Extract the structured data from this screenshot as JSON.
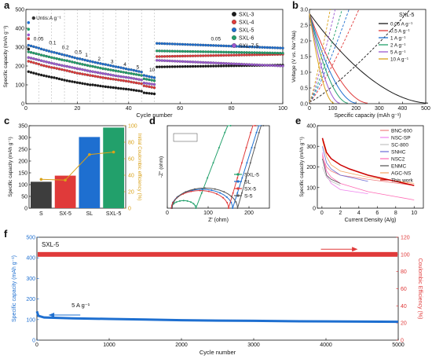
{
  "colors": {
    "blue_axis": "#1e6fd0",
    "red_axis": "#e03a3a",
    "orange_ice": "#d9a21a",
    "rate_lines": [
      "#1a1a1a",
      "#e03a3a",
      "#1e6fd0",
      "#22a06b",
      "#9b59d0",
      "#d9a21a"
    ]
  },
  "chart_data": [
    {
      "panel": "a",
      "type": "scatter",
      "ylabel": "Specific capacity (mAh g⁻¹)",
      "xlabel": "Cycle number",
      "xlim": [
        0,
        100
      ],
      "ylim": [
        0,
        500
      ],
      "xticks": [
        0,
        20,
        40,
        60,
        80,
        100
      ],
      "yticks": [
        0,
        100,
        200,
        300,
        400,
        500
      ],
      "unit_note": "Untis:A g⁻¹",
      "rate_labels": [
        {
          "text": "0.05",
          "x": 3,
          "y": 335
        },
        {
          "text": "0.1",
          "x": 9,
          "y": 315
        },
        {
          "text": "0.2",
          "x": 14,
          "y": 290
        },
        {
          "text": "0.5",
          "x": 19,
          "y": 265
        },
        {
          "text": "1",
          "x": 23,
          "y": 250
        },
        {
          "text": "2",
          "x": 28,
          "y": 230
        },
        {
          "text": "3",
          "x": 33,
          "y": 215
        },
        {
          "text": "4",
          "x": 38,
          "y": 200
        },
        {
          "text": "5",
          "x": 43,
          "y": 185
        },
        {
          "text": "10",
          "x": 48,
          "y": 170
        },
        {
          "text": "0.05",
          "x": 72,
          "y": 335
        }
      ],
      "series": [
        {
          "name": "SXL-3",
          "color": "#1a1a1a",
          "stages": [
            [
              170,
              155
            ],
            [
              152,
              140
            ],
            [
              138,
              125
            ],
            [
              122,
              112
            ],
            [
              110,
              100
            ],
            [
              100,
              92
            ],
            [
              90,
              84
            ],
            [
              82,
              76
            ],
            [
              74,
              66
            ],
            [
              58,
              52
            ],
            [
              195,
              205
            ]
          ]
        },
        {
          "name": "SXL-4",
          "color": "#e03a3a",
          "stages": [
            [
              225,
              210
            ],
            [
              205,
              192
            ],
            [
              190,
              178
            ],
            [
              175,
              162
            ],
            [
              160,
              150
            ],
            [
              148,
              138
            ],
            [
              136,
              128
            ],
            [
              126,
              118
            ],
            [
              115,
              106
            ],
            [
              95,
              85
            ],
            [
              250,
              262
            ]
          ]
        },
        {
          "name": "SXL-5",
          "color": "#1e6fd0",
          "stages": [
            [
              310,
              295
            ],
            [
              290,
              275
            ],
            [
              272,
              258
            ],
            [
              255,
              240
            ],
            [
              238,
              225
            ],
            [
              222,
              210
            ],
            [
              208,
              196
            ],
            [
              194,
              182
            ],
            [
              180,
              168
            ],
            [
              150,
              138
            ],
            [
              320,
              295
            ]
          ]
        },
        {
          "name": "SXL-6",
          "color": "#22a06b",
          "stages": [
            [
              275,
              262
            ],
            [
              258,
              245
            ],
            [
              242,
              230
            ],
            [
              228,
              215
            ],
            [
              212,
              200
            ],
            [
              198,
              186
            ],
            [
              184,
              174
            ],
            [
              172,
              162
            ],
            [
              160,
              150
            ],
            [
              132,
              122
            ],
            [
              280,
              268
            ]
          ]
        },
        {
          "name": "SXL-7.5",
          "color": "#9b59d0",
          "stages": [
            [
              245,
              232
            ],
            [
              228,
              215
            ],
            [
              212,
              200
            ],
            [
              198,
              186
            ],
            [
              184,
              172
            ],
            [
              170,
              160
            ],
            [
              158,
              148
            ],
            [
              146,
              138
            ],
            [
              136,
              126
            ],
            [
              110,
              102
            ],
            [
              230,
              200
            ]
          ]
        }
      ]
    },
    {
      "panel": "b",
      "type": "line",
      "ylabel": "Voltage (V vs. Na⁺/Na)",
      "xlabel": "Specific capacity (mAh g⁻¹)",
      "xlim": [
        0,
        500
      ],
      "ylim": [
        0,
        3.0
      ],
      "xticks": [
        0,
        100,
        200,
        300,
        400,
        500
      ],
      "yticks": [
        0.0,
        0.5,
        1.0,
        1.5,
        2.0,
        2.5,
        3.0
      ],
      "legend_title": "SXL-5",
      "series": [
        {
          "name": "0.05 A g⁻¹",
          "color": "#1a1a1a",
          "cap": 510
        },
        {
          "name": "0.5 A g⁻¹",
          "color": "#e03a3a",
          "cap": 250
        },
        {
          "name": "1 A g⁻¹",
          "color": "#1e6fd0",
          "cap": 200
        },
        {
          "name": "2 A g⁻¹",
          "color": "#22a06b",
          "cap": 165
        },
        {
          "name": "5 A g⁻¹",
          "color": "#9b59d0",
          "cap": 130
        },
        {
          "name": "10 A g⁻¹",
          "color": "#d9a21a",
          "cap": 105
        }
      ]
    },
    {
      "panel": "c",
      "type": "bar",
      "ylabel": "Specific capacity (mAh g⁻¹)",
      "y2label": "Initial Coulombic efficiency (%)",
      "categories": [
        "S",
        "SX-5",
        "SL",
        "SXL-5"
      ],
      "values": [
        112,
        138,
        302,
        342
      ],
      "colors": [
        "#3d3d3d",
        "#e03a3a",
        "#1e6fd0",
        "#22a06b"
      ],
      "ylim": [
        0,
        350
      ],
      "yticks": [
        0,
        50,
        100,
        150,
        200,
        250,
        300,
        350
      ],
      "y2lim": [
        0,
        100
      ],
      "y2ticks": [
        0,
        20,
        40,
        60,
        80,
        100
      ],
      "ice_values": [
        35,
        34,
        65,
        68
      ]
    },
    {
      "panel": "d",
      "type": "line",
      "ylabel": "-Z'' (ohm)",
      "xlabel": "Z' (ohm)",
      "xlim": [
        0,
        250
      ],
      "ylim": [
        0,
        180
      ],
      "xticks": [
        0,
        100,
        200
      ],
      "series": [
        {
          "name": "SXL-5",
          "color": "#22a06b",
          "r0": 10,
          "rct": 60,
          "tail_x": 155
        },
        {
          "name": "SL",
          "color": "#1e6fd0",
          "r0": 10,
          "rct": 150,
          "tail_x": 230
        },
        {
          "name": "SX-5",
          "color": "#e03a3a",
          "r0": 10,
          "rct": 140,
          "tail_x": 215
        },
        {
          "name": "S-5",
          "color": "#5a5a5a",
          "r0": 12,
          "rct": 160,
          "tail_x": 235
        }
      ]
    },
    {
      "panel": "e",
      "type": "line",
      "ylabel": "Specific capacity (mAh g⁻¹)",
      "xlabel": "Current Density (A/g)",
      "xlim": [
        -0.5,
        11
      ],
      "ylim": [
        0,
        400
      ],
      "xticks": [
        0,
        2,
        4,
        6,
        8,
        10
      ],
      "yticks": [
        0,
        100,
        200,
        300,
        400
      ],
      "series": [
        {
          "name": "BNC-600",
          "color": "#f08080",
          "pts": [
            [
              0.05,
              250
            ],
            [
              0.5,
              200
            ],
            [
              1,
              180
            ],
            [
              2,
              160
            ],
            [
              5,
              140
            ],
            [
              10,
              110
            ]
          ]
        },
        {
          "name": "NSC-SP",
          "color": "#ee82ee",
          "pts": [
            [
              0.05,
              270
            ],
            [
              0.5,
              160
            ],
            [
              1,
              120
            ],
            [
              2,
              90
            ],
            [
              5,
              70
            ]
          ]
        },
        {
          "name": "SC-800",
          "color": "#c0c0c0",
          "pts": [
            [
              0.05,
              200
            ],
            [
              0.5,
              150
            ],
            [
              1,
              130
            ],
            [
              2,
              110
            ]
          ]
        },
        {
          "name": "SNHC",
          "color": "#6b6bd6",
          "pts": [
            [
              0.05,
              300
            ],
            [
              0.5,
              220
            ],
            [
              1,
              190
            ],
            [
              2,
              160
            ],
            [
              5,
              130
            ]
          ]
        },
        {
          "name": "NSC2",
          "color": "#ff69b4",
          "pts": [
            [
              0.05,
              260
            ],
            [
              0.5,
              180
            ],
            [
              1,
              150
            ],
            [
              2,
              120
            ],
            [
              5,
              80
            ],
            [
              10,
              40
            ]
          ]
        },
        {
          "name": "ENMC",
          "color": "#505050",
          "pts": [
            [
              0.05,
              240
            ],
            [
              0.5,
              160
            ],
            [
              1,
              140
            ],
            [
              2,
              120
            ]
          ]
        },
        {
          "name": "AGC-NS",
          "color": "#f4a460",
          "pts": [
            [
              0.05,
              330
            ],
            [
              0.5,
              250
            ],
            [
              1,
              210
            ],
            [
              2,
              180
            ],
            [
              5,
              150
            ],
            [
              10,
              120
            ]
          ]
        },
        {
          "name": "This work",
          "color": "#cc0000",
          "pts": [
            [
              0.05,
              340
            ],
            [
              0.5,
              270
            ],
            [
              1,
              240
            ],
            [
              2,
              210
            ],
            [
              3,
              190
            ],
            [
              5,
              160
            ],
            [
              10,
              110
            ]
          ]
        }
      ]
    },
    {
      "panel": "f",
      "type": "scatter",
      "ylabel": "Specific capacity (mAh g⁻¹)",
      "y2label": "Coulombic Efficiency (%)",
      "xlabel": "Cycle number",
      "xlim": [
        0,
        5000
      ],
      "ylim": [
        0,
        500
      ],
      "y2lim": [
        0,
        120
      ],
      "xticks": [
        0,
        1000,
        2000,
        3000,
        4000,
        5000
      ],
      "yticks": [
        0,
        100,
        200,
        300,
        400,
        500
      ],
      "y2ticks": [
        0,
        20,
        40,
        60,
        80,
        100,
        120
      ],
      "series_label": "SXL-5",
      "rate_label": "5 A g⁻¹",
      "capacity_pts": [
        [
          0,
          140
        ],
        [
          20,
          118
        ],
        [
          100,
          110
        ],
        [
          500,
          106
        ],
        [
          1000,
          103
        ],
        [
          1500,
          100
        ],
        [
          2000,
          97
        ],
        [
          2500,
          95
        ],
        [
          3000,
          94
        ],
        [
          3500,
          92
        ],
        [
          4000,
          91
        ],
        [
          4500,
          90
        ],
        [
          5000,
          89
        ]
      ],
      "ce_value": 100
    }
  ]
}
